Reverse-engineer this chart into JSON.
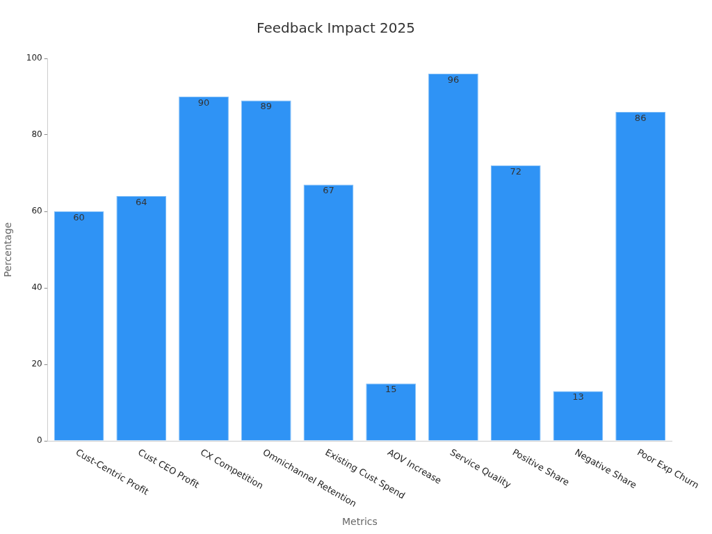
{
  "chart_data": {
    "type": "bar",
    "title": "Feedback Impact 2025",
    "xlabel": "Metrics",
    "ylabel": "Percentage",
    "categories": [
      "Cust-Centric Profit",
      "Cust CEO Profit",
      "CX Competition",
      "Omnichannel Retention",
      "Existing Cust Spend",
      "AOV Increase",
      "Service Quality",
      "Positive Share",
      "Negative Share",
      "Poor Exp Churn"
    ],
    "values": [
      60,
      64,
      90,
      89,
      67,
      15,
      96,
      72,
      13,
      86
    ],
    "color": "#2f93f5",
    "ylim": [
      0,
      100
    ],
    "yticks": [
      0,
      20,
      40,
      60,
      80,
      100
    ],
    "grid": false,
    "legend": false,
    "data_labels": true
  }
}
